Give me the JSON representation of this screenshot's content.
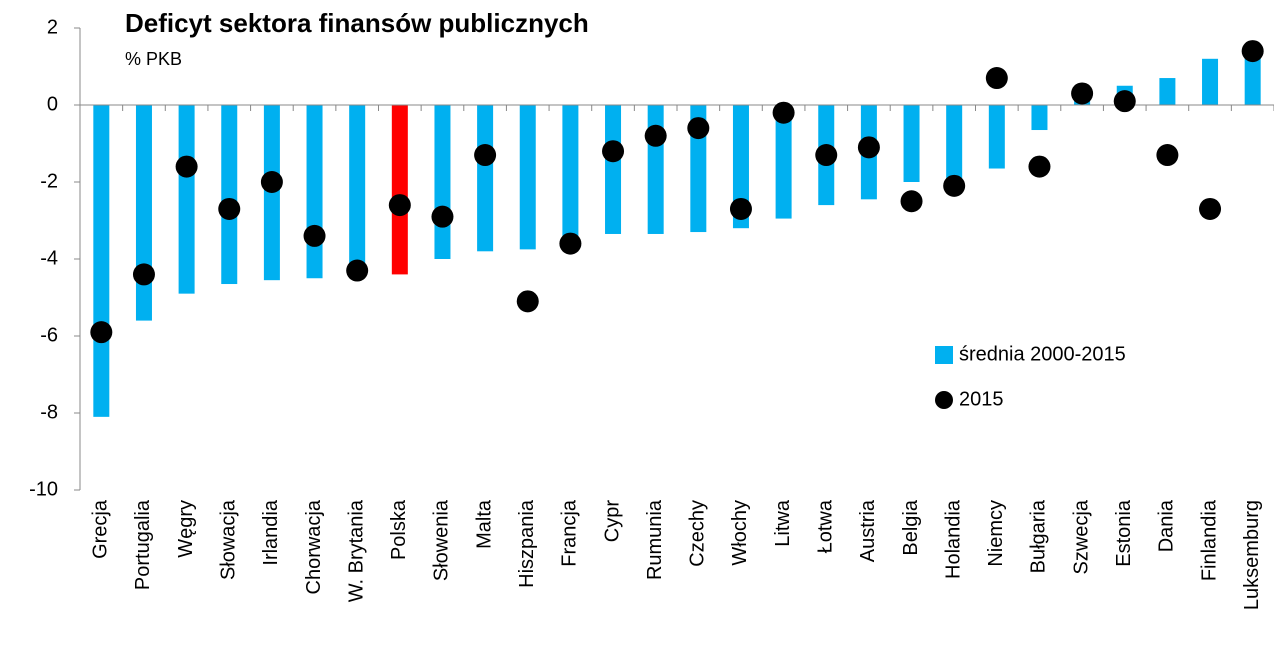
{
  "chart_data": {
    "type": "bar",
    "title": "Deficyt sektora finansów publicznych",
    "subtitle": "% PKB",
    "categories": [
      "Grecja",
      "Portugalia",
      "Węgry",
      "Słowacja",
      "Irlandia",
      "Chorwacja",
      "W. Brytania",
      "Polska",
      "Słowenia",
      "Malta",
      "Hiszpania",
      "Francja",
      "Cypr",
      "Rumunia",
      "Czechy",
      "Włochy",
      "Litwa",
      "Łotwa",
      "Austria",
      "Belgia",
      "Holandia",
      "Niemcy",
      "Bułgaria",
      "Szwecja",
      "Estonia",
      "Dania",
      "Finlandia",
      "Luksemburg"
    ],
    "series": [
      {
        "name": "średnia 2000-2015",
        "type": "bar",
        "color": "#00b0f0",
        "colors": [
          "#00b0f0",
          "#00b0f0",
          "#00b0f0",
          "#00b0f0",
          "#00b0f0",
          "#00b0f0",
          "#00b0f0",
          "#ff0000",
          "#00b0f0",
          "#00b0f0",
          "#00b0f0",
          "#00b0f0",
          "#00b0f0",
          "#00b0f0",
          "#00b0f0",
          "#00b0f0",
          "#00b0f0",
          "#00b0f0",
          "#00b0f0",
          "#00b0f0",
          "#00b0f0",
          "#00b0f0",
          "#00b0f0",
          "#00b0f0",
          "#00b0f0",
          "#00b0f0",
          "#00b0f0",
          "#00b0f0"
        ],
        "values": [
          -8.1,
          -5.6,
          -4.9,
          -4.65,
          -4.55,
          -4.5,
          -4.3,
          -4.4,
          -4.0,
          -3.8,
          -3.75,
          -3.5,
          -3.35,
          -3.35,
          -3.3,
          -3.2,
          -2.95,
          -2.6,
          -2.45,
          -2.0,
          -1.9,
          -1.65,
          -0.65,
          0.1,
          0.5,
          0.7,
          1.2,
          1.4
        ]
      },
      {
        "name": "2015",
        "type": "scatter",
        "color": "#000000",
        "values": [
          -5.9,
          -4.4,
          -1.6,
          -2.7,
          -2.0,
          -3.4,
          -4.3,
          -2.6,
          -2.9,
          -1.3,
          -5.1,
          -3.6,
          -1.2,
          -0.8,
          -0.6,
          -2.7,
          -0.2,
          -1.3,
          -1.1,
          -2.5,
          -2.1,
          0.7,
          -1.6,
          0.3,
          0.1,
          -1.3,
          -2.7,
          1.4
        ]
      }
    ],
    "ylim": [
      -10,
      2
    ],
    "yticks": [
      -10,
      -8,
      -6,
      -4,
      -2,
      0,
      2
    ],
    "grid": false,
    "legend": "right"
  }
}
